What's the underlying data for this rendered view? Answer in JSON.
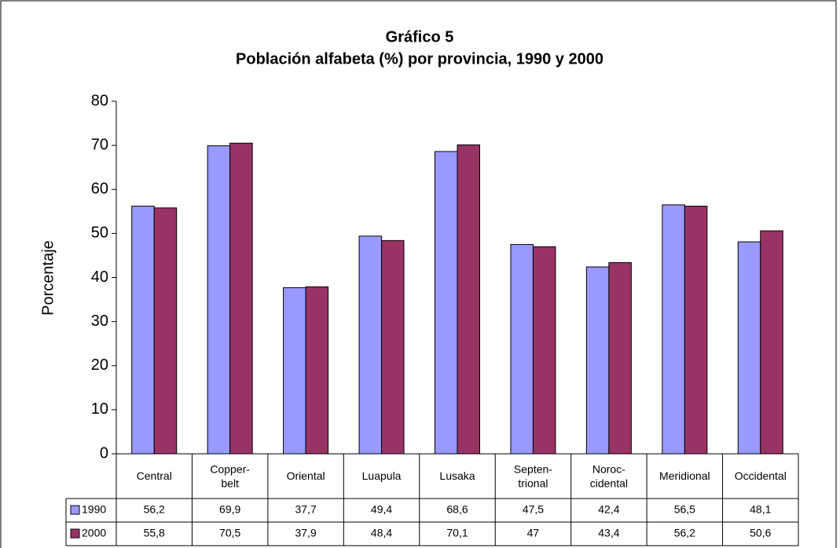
{
  "chart_data": {
    "type": "bar",
    "title": [
      "Gráfico 5",
      "Población alfabeta (%) por provincia, 1990 y 2000"
    ],
    "y_label": "Porcentaje",
    "categories": [
      "Central",
      "Copper-\nbelt",
      "Oriental",
      "Luapula",
      "Lusaka",
      "Septen-\ntrional",
      "Noroc-\ncidental",
      "Meridional",
      "Occidental"
    ],
    "series": [
      {
        "name": "1990",
        "color": "#9999ff",
        "values": [
          56.2,
          69.9,
          37.7,
          49.4,
          68.6,
          47.5,
          42.4,
          56.5,
          48.1
        ],
        "value_labels": [
          "56,2",
          "69,9",
          "37,7",
          "49,4",
          "68,6",
          "47,5",
          "42,4",
          "56,5",
          "48,1"
        ]
      },
      {
        "name": "2000",
        "color": "#993366",
        "values": [
          55.8,
          70.5,
          37.9,
          48.4,
          70.1,
          47,
          43.4,
          56.2,
          50.6
        ],
        "value_labels": [
          "55,8",
          "70,5",
          "37,9",
          "48,4",
          "70,1",
          "47",
          "43,4",
          "56,2",
          "50,6"
        ]
      }
    ],
    "ylim": [
      0,
      80
    ],
    "yticks": [
      0,
      10,
      20,
      30,
      40,
      50,
      60,
      70,
      80
    ],
    "grid": false
  }
}
